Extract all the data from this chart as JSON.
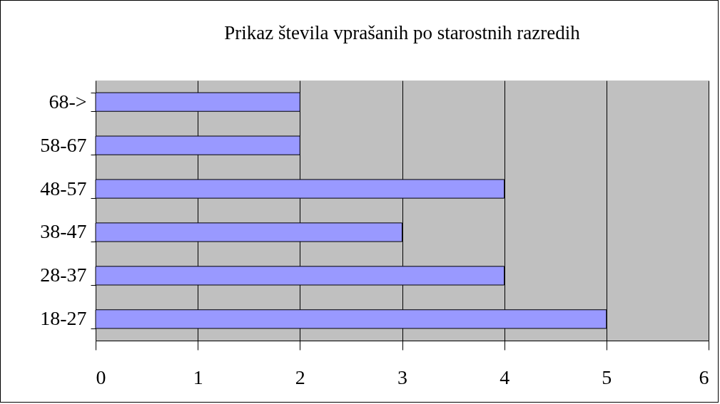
{
  "chart_data": {
    "type": "bar",
    "orientation": "horizontal",
    "title": "Prikaz števila vprašanih po starostnih razredih",
    "categories": [
      "68->",
      "58-67",
      "48-57",
      "38-47",
      "28-37",
      "18-27"
    ],
    "values": [
      2,
      2,
      4,
      3,
      4,
      5
    ],
    "color": "#9999ff",
    "xlim": [
      0,
      6
    ],
    "xticks": [
      0,
      1,
      2,
      3,
      4,
      5,
      6
    ],
    "grid": "x"
  }
}
